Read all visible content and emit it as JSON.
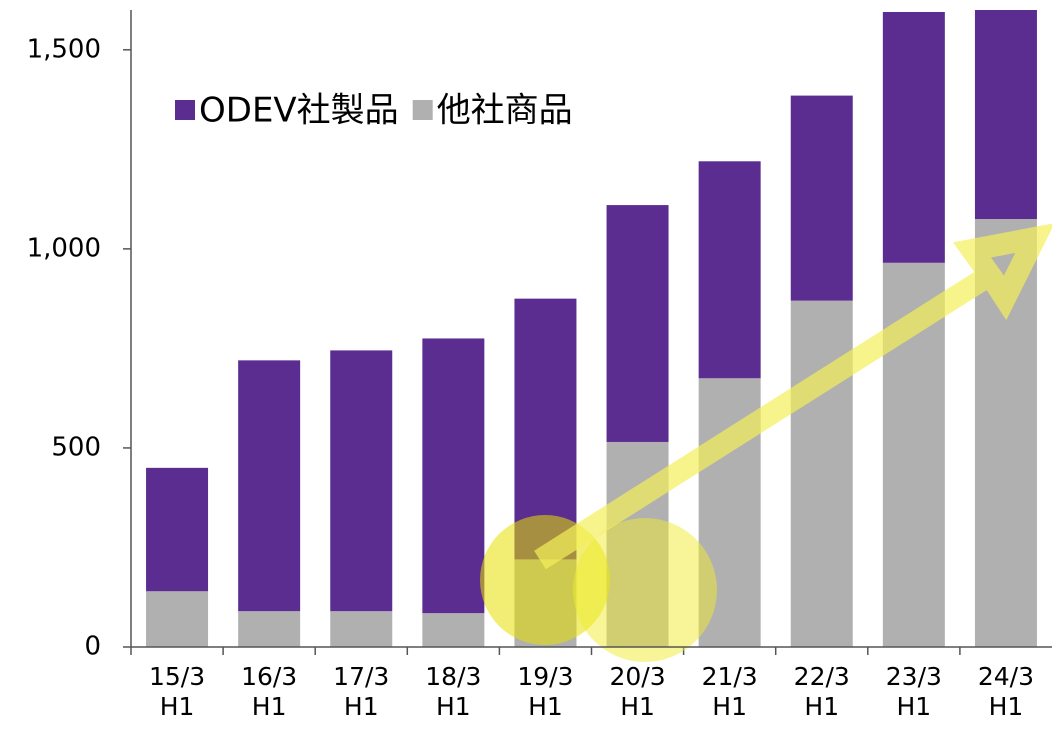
{
  "chart_data": {
    "type": "stacked_bar",
    "categories": [
      "15/3 H1",
      "16/3 H1",
      "17/3 H1",
      "18/3 H1",
      "19/3 H1",
      "20/3 H1",
      "21/3 H1",
      "22/3 H1",
      "23/3 H1",
      "24/3 H1"
    ],
    "series": [
      {
        "name": "ODEV社製品",
        "color": "#5c2d91",
        "values": [
          310,
          630,
          655,
          690,
          655,
          595,
          545,
          515,
          630,
          525
        ]
      },
      {
        "name": "他社商品",
        "color": "#b0b0b0",
        "values": [
          140,
          90,
          90,
          85,
          220,
          515,
          675,
          870,
          965,
          1075
        ]
      }
    ],
    "ylim": [
      0,
      1600
    ],
    "yticks": [
      0,
      500,
      {
        "value": 1000,
        "label": "1,000"
      },
      {
        "value": 1500,
        "label": "1,500"
      }
    ],
    "stack_order": "bottom_last",
    "legend": "upper left",
    "grid": false
  }
}
